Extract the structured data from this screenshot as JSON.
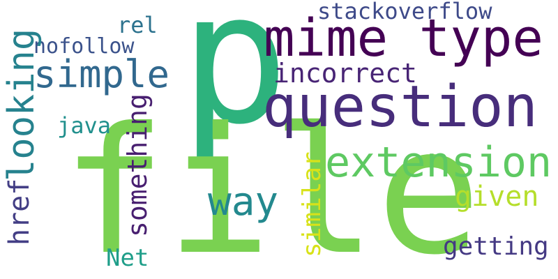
{
  "words": [
    {
      "key": "p",
      "text": "p",
      "color": "#2db27d"
    },
    {
      "key": "file",
      "text": "file",
      "color": "#7ad151"
    },
    {
      "key": "mime_type",
      "text": "mime type",
      "color": "#440154"
    },
    {
      "key": "question",
      "text": "question",
      "color": "#472d7b"
    },
    {
      "key": "extension",
      "text": "extension",
      "color": "#5ec962"
    },
    {
      "key": "simple",
      "text": "simple",
      "color": "#31688e"
    },
    {
      "key": "incorrect",
      "text": "incorrect",
      "color": "#482475"
    },
    {
      "key": "stackoverflow",
      "text": "stackoverflow",
      "color": "#3e4a89"
    },
    {
      "key": "rel",
      "text": "rel",
      "color": "#2c728e"
    },
    {
      "key": "nofollow",
      "text": "nofollow",
      "color": "#3b528b"
    },
    {
      "key": "java",
      "text": "java",
      "color": "#21908d"
    },
    {
      "key": "way",
      "text": "way",
      "color": "#23898e"
    },
    {
      "key": "given",
      "text": "given",
      "color": "#b5de2b"
    },
    {
      "key": "getting",
      "text": "getting",
      "color": "#443983"
    },
    {
      "key": "net",
      "text": "Net",
      "color": "#1f9e89"
    },
    {
      "key": "looking",
      "text": "looking",
      "color": "#26828e"
    },
    {
      "key": "href",
      "text": "href",
      "color": "#433e85"
    },
    {
      "key": "something",
      "text": "something",
      "color": "#481f70"
    },
    {
      "key": "similar",
      "text": "similar",
      "color": "#d8e219"
    }
  ]
}
